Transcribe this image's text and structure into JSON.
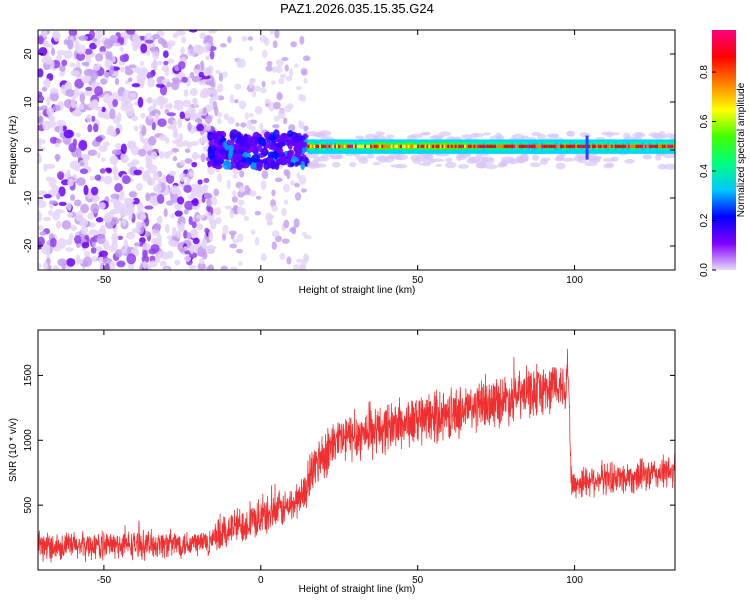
{
  "figure_title": "PAZ1.2026.035.15.35.G24",
  "chart_data": [
    {
      "type": "heatmap",
      "title": "PAZ1.2026.035.15.35.G24",
      "xlabel": "Height of straight line (km)",
      "ylabel": "Frequency (Hz)",
      "xlim": [
        -71,
        132
      ],
      "ylim": [
        -25,
        25
      ],
      "xticks": [
        -50,
        0,
        50,
        100
      ],
      "yticks": [
        -20,
        -10,
        0,
        10,
        20
      ],
      "colorbar": {
        "label": "Normalized spectral amplitude",
        "range": [
          0.0,
          0.97
        ],
        "ticks": [
          0.0,
          0.2,
          0.4,
          0.6,
          0.8
        ],
        "colormap": [
          "#e8d8f8",
          "#8000ff",
          "#0000ff",
          "#00c8ff",
          "#00ff80",
          "#40ff00",
          "#ffff00",
          "#ff8000",
          "#ff0000",
          "#ff0080"
        ]
      },
      "regions": [
        {
          "x_range": [
            -71,
            -17
          ],
          "description_level": "scattered noise",
          "amplitude_range": [
            0.0,
            0.2
          ]
        },
        {
          "x_range": [
            -17,
            15
          ],
          "frequency_center": 0.5,
          "amplitude_range": [
            0.1,
            0.35
          ]
        },
        {
          "x_range": [
            15,
            132
          ],
          "frequency_center": 0.8,
          "frequency_width": 3,
          "amplitude_range": [
            0.3,
            0.95
          ]
        }
      ]
    },
    {
      "type": "line",
      "xlabel": "Height of straight line (km)",
      "ylabel": "SNR (10 * v/v)",
      "xlim": [
        -71,
        132
      ],
      "ylim": [
        0,
        1850
      ],
      "xticks": [
        -50,
        0,
        50,
        100
      ],
      "yticks": [
        500,
        1000,
        1500
      ],
      "series": [
        {
          "name": "SNR",
          "color": "#f03030",
          "x": [
            -71,
            -50,
            -30,
            -20,
            -15,
            -10,
            0,
            10,
            14,
            18,
            25,
            40,
            60,
            80,
            97,
            98,
            99,
            105,
            120,
            132
          ],
          "y": [
            180,
            190,
            200,
            210,
            220,
            320,
            400,
            500,
            600,
            850,
            1000,
            1100,
            1200,
            1330,
            1430,
            1550,
            650,
            700,
            720,
            760
          ]
        }
      ]
    }
  ]
}
